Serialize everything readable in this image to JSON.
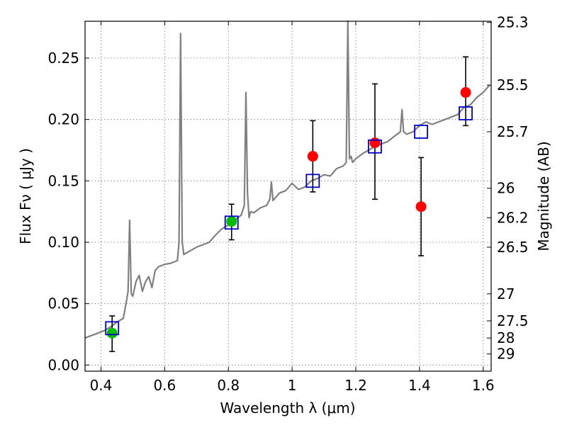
{
  "chart_data": {
    "type": "scatter",
    "xlabel": "Wavelength  λ (μm)",
    "ylabel": "Flux  Fν  ( μJy )",
    "ylabel_right": "Magnitude (AB)",
    "xlim": [
      0.35,
      1.625
    ],
    "ylim": [
      -0.005,
      0.28
    ],
    "grid": true,
    "x_ticks": [
      0.4,
      0.6,
      0.8,
      1.0,
      1.2,
      1.4,
      1.6
    ],
    "x_tick_labels": [
      "0.4",
      "0.6",
      "0.8",
      "1",
      "1.2",
      "1.4",
      "1.6"
    ],
    "y_ticks": [
      0.0,
      0.05,
      0.1,
      0.15,
      0.2,
      0.25
    ],
    "y_tick_labels": [
      "0.00",
      "0.05",
      "0.10",
      "0.15",
      "0.20",
      "0.25"
    ],
    "right_ticks": [
      {
        "flux": 0.279,
        "label": "25.3"
      },
      {
        "flux": 0.228,
        "label": "25.5"
      },
      {
        "flux": 0.19,
        "label": "25.7"
      },
      {
        "flux": 0.144,
        "label": "26"
      },
      {
        "flux": 0.12,
        "label": "26.2"
      },
      {
        "flux": 0.096,
        "label": "26.5"
      },
      {
        "flux": 0.058,
        "label": "27"
      },
      {
        "flux": 0.036,
        "label": "27.5"
      },
      {
        "flux": 0.022,
        "label": "28"
      },
      {
        "flux": 0.009,
        "label": "29"
      }
    ],
    "series": [
      {
        "style": "template-spectrum",
        "color": "#808080",
        "x": [
          0.35,
          0.37,
          0.39,
          0.41,
          0.43,
          0.45,
          0.47,
          0.475,
          0.48,
          0.485,
          0.49,
          0.495,
          0.5,
          0.51,
          0.52,
          0.53,
          0.54,
          0.55,
          0.56,
          0.57,
          0.58,
          0.59,
          0.6,
          0.62,
          0.64,
          0.645,
          0.65,
          0.655,
          0.66,
          0.68,
          0.7,
          0.72,
          0.74,
          0.76,
          0.78,
          0.8,
          0.82,
          0.84,
          0.85,
          0.855,
          0.86,
          0.865,
          0.87,
          0.88,
          0.9,
          0.92,
          0.93,
          0.935,
          0.94,
          0.96,
          0.98,
          1.0,
          1.02,
          1.04,
          1.06,
          1.08,
          1.1,
          1.12,
          1.14,
          1.16,
          1.17,
          1.175,
          1.18,
          1.185,
          1.19,
          1.2,
          1.22,
          1.24,
          1.26,
          1.28,
          1.3,
          1.32,
          1.34,
          1.345,
          1.35,
          1.36,
          1.38,
          1.4,
          1.42,
          1.44,
          1.46,
          1.48,
          1.5,
          1.52,
          1.54,
          1.56,
          1.58,
          1.6,
          1.62
        ],
        "y": [
          0.022,
          0.024,
          0.026,
          0.028,
          0.031,
          0.035,
          0.038,
          0.045,
          0.052,
          0.06,
          0.118,
          0.058,
          0.056,
          0.068,
          0.073,
          0.06,
          0.068,
          0.072,
          0.063,
          0.077,
          0.08,
          0.081,
          0.082,
          0.083,
          0.085,
          0.1,
          0.27,
          0.1,
          0.09,
          0.093,
          0.096,
          0.098,
          0.1,
          0.106,
          0.111,
          0.114,
          0.118,
          0.122,
          0.13,
          0.222,
          0.14,
          0.12,
          0.125,
          0.124,
          0.128,
          0.13,
          0.135,
          0.149,
          0.134,
          0.14,
          0.142,
          0.148,
          0.143,
          0.145,
          0.15,
          0.152,
          0.155,
          0.154,
          0.16,
          0.162,
          0.165,
          0.28,
          0.168,
          0.17,
          0.165,
          0.168,
          0.172,
          0.175,
          0.178,
          0.18,
          0.182,
          0.186,
          0.19,
          0.208,
          0.19,
          0.188,
          0.19,
          0.195,
          0.198,
          0.196,
          0.198,
          0.2,
          0.202,
          0.204,
          0.21,
          0.212,
          0.218,
          0.222,
          0.228
        ]
      },
      {
        "style": "model-magnitudes",
        "marker": "open-square",
        "color": "#0000cc",
        "x": [
          0.435,
          0.81,
          1.065,
          1.26,
          1.405,
          1.545
        ],
        "y": [
          0.03,
          0.116,
          0.15,
          0.178,
          0.19,
          0.205
        ]
      },
      {
        "style": "observed-red",
        "marker": "filled-circle",
        "color": "#ff0000",
        "x": [
          1.065,
          1.26,
          1.405,
          1.545
        ],
        "y": [
          0.17,
          0.181,
          0.129,
          0.222
        ],
        "yerr_low": [
          0.141,
          0.135,
          0.089,
          0.195
        ],
        "yerr_high": [
          0.199,
          0.229,
          0.169,
          0.251
        ]
      },
      {
        "style": "observed-green",
        "marker": "filled-circle",
        "color": "#00bb00",
        "x": [
          0.435,
          0.81
        ],
        "y": [
          0.026,
          0.117
        ],
        "yerr_low": [
          0.011,
          0.102
        ],
        "yerr_high": [
          0.04,
          0.131
        ]
      }
    ]
  }
}
